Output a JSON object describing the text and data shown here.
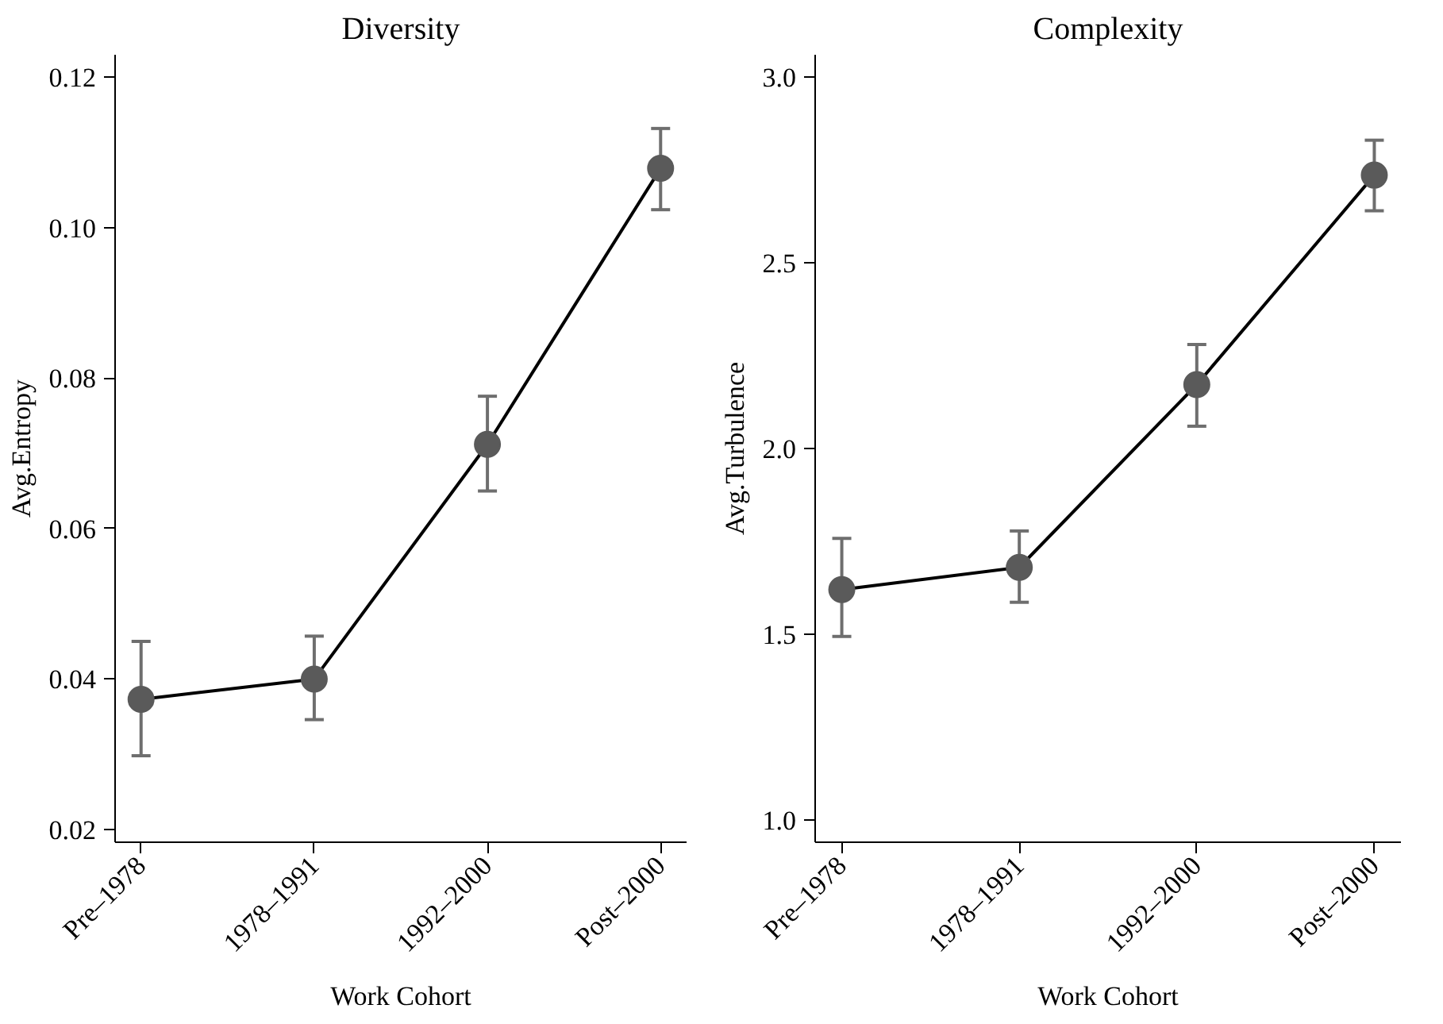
{
  "chart_data": [
    {
      "type": "line",
      "title": "Diversity",
      "xlabel": "Work Cohort",
      "ylabel": "Avg.Entropy",
      "categories": [
        "Pre–1978",
        "1978–1991",
        "1992–2000",
        "Post–2000"
      ],
      "series": [
        {
          "color": "#5a5a5a",
          "values": [
            0.0373,
            0.04,
            0.0712,
            0.1079
          ],
          "errors": [
            [
              0.0298,
              0.045
            ],
            [
              0.0346,
              0.0457
            ],
            [
              0.065,
              0.0776
            ],
            [
              0.1024,
              0.1132
            ]
          ]
        }
      ],
      "ylim": [
        0.0183,
        0.123
      ],
      "yticks": [
        {
          "value": 0.02,
          "label": "0.02"
        },
        {
          "value": 0.04,
          "label": "0.04"
        },
        {
          "value": 0.06,
          "label": "0.06"
        },
        {
          "value": 0.08,
          "label": "0.08"
        },
        {
          "value": 0.1,
          "label": "0.10"
        },
        {
          "value": 0.12,
          "label": "0.12"
        }
      ],
      "grid": false,
      "marker": "circle",
      "line_style": "solid"
    },
    {
      "type": "line",
      "title": "Complexity",
      "xlabel": "Work Cohort",
      "ylabel": "Avg.Turbulence",
      "categories": [
        "Pre–1978",
        "1978–1991",
        "1992–2000",
        "Post–2000"
      ],
      "series": [
        {
          "color": "#5a5a5a",
          "values": [
            1.62,
            1.68,
            2.172,
            2.736
          ],
          "errors": [
            [
              1.494,
              1.758
            ],
            [
              1.586,
              1.778
            ],
            [
              2.06,
              2.28
            ],
            [
              2.64,
              2.83
            ]
          ]
        }
      ],
      "ylim": [
        0.94,
        3.06
      ],
      "yticks": [
        {
          "value": 1.0,
          "label": "1.0"
        },
        {
          "value": 1.5,
          "label": "1.5"
        },
        {
          "value": 2.0,
          "label": "2.0"
        },
        {
          "value": 2.5,
          "label": "2.5"
        },
        {
          "value": 3.0,
          "label": "3.0"
        }
      ],
      "grid": false,
      "marker": "circle",
      "line_style": "solid"
    }
  ]
}
